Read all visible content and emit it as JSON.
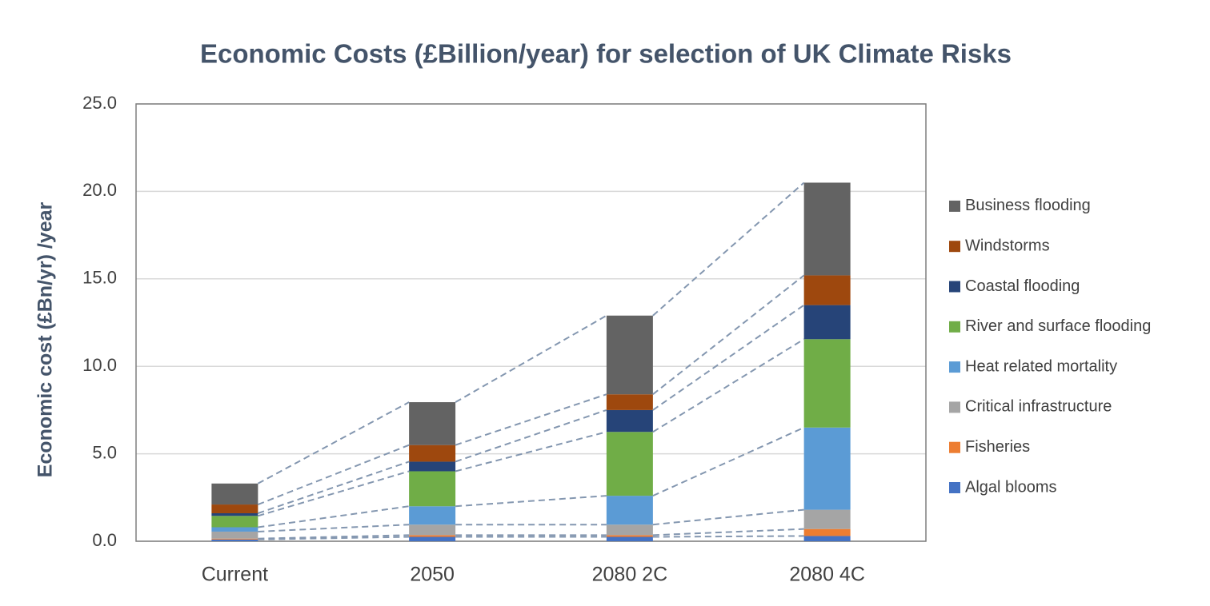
{
  "chart_data": {
    "type": "stacked-bar",
    "title": "Economic Costs (£Billion/year) for selection of UK Climate Risks",
    "y_label": "Economic cost (£Bn/yr) /year",
    "categories": [
      "Current",
      "2050",
      "2080 2C",
      "2080 4C"
    ],
    "series": [
      {
        "name": "Algal blooms",
        "color": "#4472c4",
        "values": [
          0.1,
          0.25,
          0.25,
          0.3
        ]
      },
      {
        "name": "Fisheries",
        "color": "#ed7d31",
        "values": [
          0.05,
          0.1,
          0.1,
          0.4
        ]
      },
      {
        "name": "Critical infrastructure",
        "color": "#a5a5a5",
        "values": [
          0.4,
          0.6,
          0.6,
          1.1
        ]
      },
      {
        "name": "Heat related mortality",
        "color": "#5b9bd5",
        "values": [
          0.25,
          1.05,
          1.65,
          4.7
        ]
      },
      {
        "name": "River and surface flooding",
        "color": "#70ad47",
        "values": [
          0.65,
          2.0,
          3.65,
          5.05
        ]
      },
      {
        "name": "Coastal flooding",
        "color": "#264478",
        "values": [
          0.15,
          0.55,
          1.25,
          1.95
        ]
      },
      {
        "name": "Windstorms",
        "color": "#9e480e",
        "values": [
          0.5,
          0.95,
          0.9,
          1.7
        ]
      },
      {
        "name": "Business flooding",
        "color": "#636363",
        "values": [
          1.2,
          2.45,
          4.5,
          5.3
        ]
      }
    ],
    "ylim": [
      0,
      25
    ],
    "yticks": [
      {
        "value": 0,
        "label": "0.0"
      },
      {
        "value": 5,
        "label": "5.0"
      },
      {
        "value": 10,
        "label": "10.0"
      },
      {
        "value": 15,
        "label": "15.0"
      },
      {
        "value": 20,
        "label": "20.0"
      },
      {
        "value": 25,
        "label": "25.0"
      }
    ],
    "grid": true,
    "legend": "right"
  }
}
